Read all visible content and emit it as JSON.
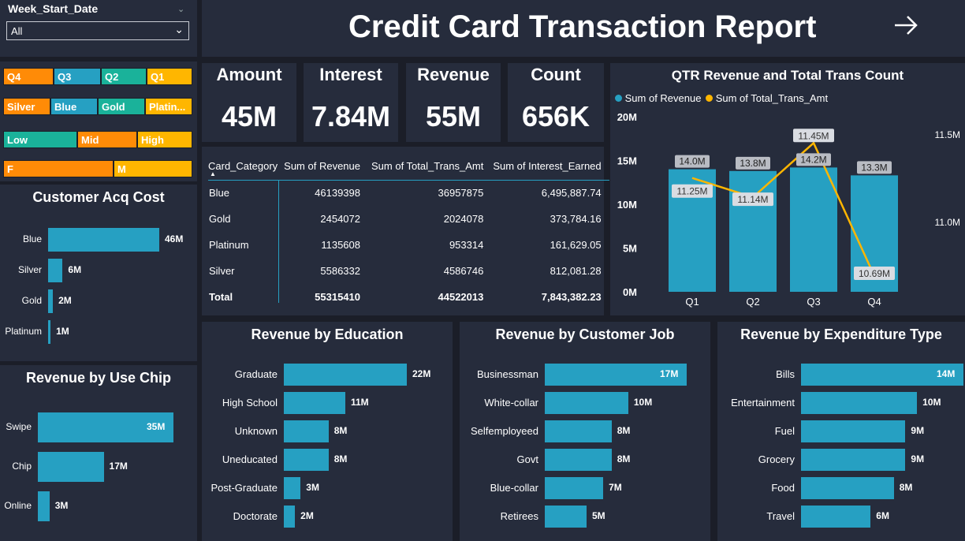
{
  "slicer": {
    "title": "Week_Start_Date",
    "value": "All"
  },
  "quarter_chips": [
    "Q4",
    "Q3",
    "Q2",
    "Q1"
  ],
  "card_chips": [
    "Silver",
    "Blue",
    "Gold",
    "Platin..."
  ],
  "income_chips": [
    "Low",
    "Mid",
    "High"
  ],
  "gender_chips": [
    "F",
    "M"
  ],
  "header": {
    "title": "Credit Card Transaction Report"
  },
  "kpis": [
    {
      "label": "Amount",
      "value": "45M"
    },
    {
      "label": "Interest",
      "value": "7.84M"
    },
    {
      "label": "Revenue",
      "value": "55M"
    },
    {
      "label": "Count",
      "value": "656K"
    }
  ],
  "table": {
    "columns": [
      "Card_Category",
      "Sum of Revenue",
      "Sum of Total_Trans_Amt",
      "Sum of Interest_Earned"
    ],
    "rows": [
      [
        "Blue",
        "46139398",
        "36957875",
        "6,495,887.74"
      ],
      [
        "Gold",
        "2454072",
        "2024078",
        "373,784.16"
      ],
      [
        "Platinum",
        "1135608",
        "953314",
        "161,629.05"
      ],
      [
        "Silver",
        "5586332",
        "4586746",
        "812,081.28"
      ]
    ],
    "total": [
      "Total",
      "55315410",
      "44522013",
      "7,843,382.23"
    ]
  },
  "colors": {
    "bar": "#26a0c2",
    "line": "#ffb600",
    "panel": "#262c3c",
    "background": "#1b1e28"
  },
  "chart_data": [
    {
      "type": "bar",
      "title": "Customer Acq Cost",
      "categories": [
        "Blue",
        "Silver",
        "Gold",
        "Platinum"
      ],
      "values": [
        46,
        6,
        2,
        1
      ],
      "labels": [
        "46M",
        "6M",
        "2M",
        "1M"
      ]
    },
    {
      "type": "bar",
      "title": "Revenue by Use Chip",
      "categories": [
        "Swipe",
        "Chip",
        "Online"
      ],
      "values": [
        35,
        17,
        3
      ],
      "labels": [
        "35M",
        "17M",
        "3M"
      ]
    },
    {
      "type": "bar",
      "title": "QTR Revenue and Total Trans Count",
      "categories": [
        "Q1",
        "Q2",
        "Q3",
        "Q4"
      ],
      "series": [
        {
          "name": "Sum of Revenue",
          "values": [
            14.0,
            13.8,
            14.2,
            13.3
          ],
          "labels": [
            "14.0M",
            "13.8M",
            "14.2M",
            "13.3M"
          ]
        },
        {
          "name": "Sum of Total_Trans_Amt",
          "values": [
            11.25,
            11.14,
            11.45,
            10.69
          ],
          "labels": [
            "11.25M",
            "11.14M",
            "11.45M",
            "10.69M"
          ]
        }
      ],
      "y_ticks": [
        "0M",
        "5M",
        "10M",
        "15M",
        "20M"
      ],
      "y2_ticks": [
        "11.0M",
        "11.5M"
      ],
      "ylim": [
        0,
        20
      ],
      "y2lim": [
        10.6,
        11.6
      ],
      "legend": "top-left"
    },
    {
      "type": "bar",
      "title": "Revenue by Education",
      "categories": [
        "Graduate",
        "High School",
        "Unknown",
        "Uneducated",
        "Post-Graduate",
        "Doctorate"
      ],
      "values": [
        22,
        11,
        8,
        8,
        3,
        2
      ],
      "labels": [
        "22M",
        "11M",
        "8M",
        "8M",
        "3M",
        "2M"
      ]
    },
    {
      "type": "bar",
      "title": "Revenue by Customer Job",
      "categories": [
        "Businessman",
        "White-collar",
        "Selfemployeed",
        "Govt",
        "Blue-collar",
        "Retirees"
      ],
      "values": [
        17,
        10,
        8,
        8,
        7,
        5
      ],
      "labels": [
        "17M",
        "10M",
        "8M",
        "8M",
        "7M",
        "5M"
      ]
    },
    {
      "type": "bar",
      "title": "Revenue by Expenditure Type",
      "categories": [
        "Bills",
        "Entertainment",
        "Fuel",
        "Grocery",
        "Food",
        "Travel"
      ],
      "values": [
        14,
        10,
        9,
        9,
        8,
        6
      ],
      "labels": [
        "14M",
        "10M",
        "9M",
        "9M",
        "8M",
        "6M"
      ]
    }
  ]
}
